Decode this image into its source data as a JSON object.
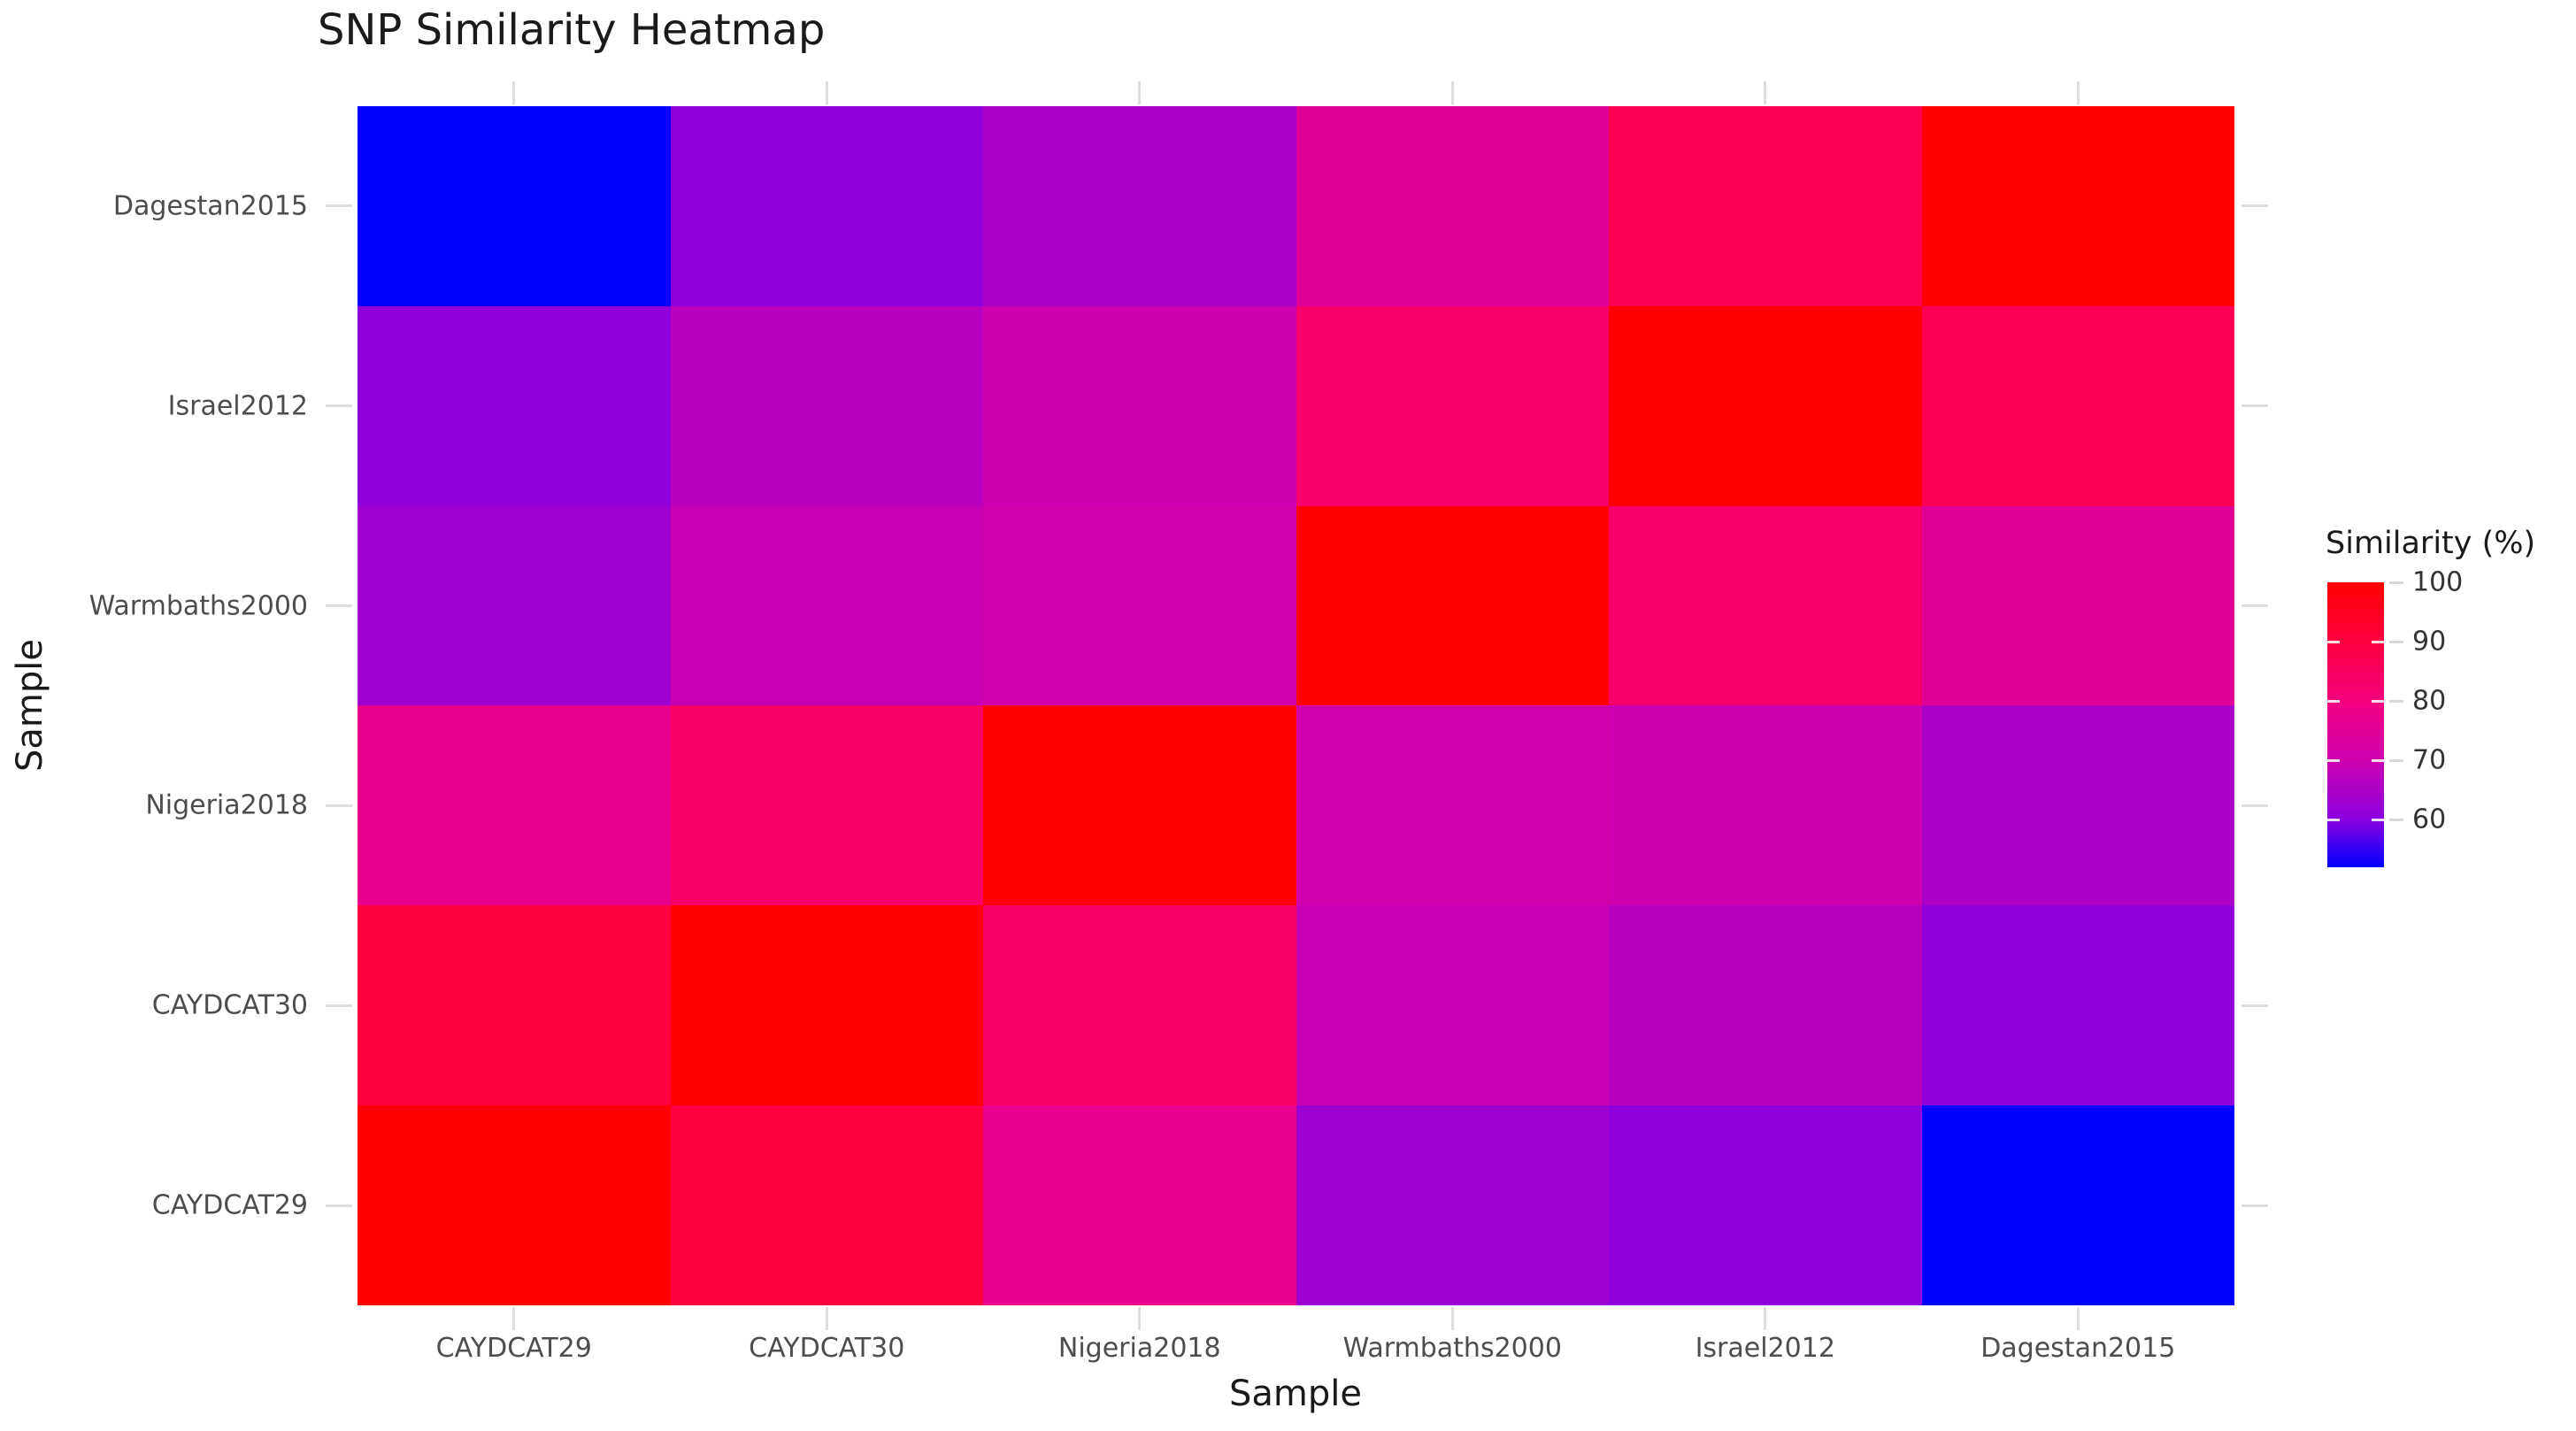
{
  "title": "SNP Similarity Heatmap",
  "x_axis": {
    "label": "Sample",
    "categories": [
      "CAYDCAT29",
      "CAYDCAT30",
      "Nigeria2018",
      "Warmbaths2000",
      "Israel2012",
      "Dagestan2015"
    ]
  },
  "y_axis": {
    "label": "Sample",
    "categories": [
      "Dagestan2015",
      "Israel2012",
      "Warmbaths2000",
      "Nigeria2018",
      "CAYDCAT30",
      "CAYDCAT29"
    ]
  },
  "legend": {
    "title": "Similarity (%)",
    "ticks": [
      100,
      90,
      80,
      70,
      60
    ],
    "position": "right"
  },
  "chart_data": {
    "type": "heatmap",
    "title": "SNP Similarity Heatmap",
    "xlabel": "Sample",
    "ylabel": "Sample",
    "x_categories": [
      "CAYDCAT29",
      "CAYDCAT30",
      "Nigeria2018",
      "Warmbaths2000",
      "Israel2012",
      "Dagestan2015"
    ],
    "y_categories_top_to_bottom": [
      "Dagestan2015",
      "Israel2012",
      "Warmbaths2000",
      "Nigeria2018",
      "CAYDCAT30",
      "CAYDCAT29"
    ],
    "values_rows_top_to_bottom": [
      [
        52,
        61,
        65,
        75,
        87,
        100
      ],
      [
        61,
        67,
        70,
        83,
        100,
        87
      ],
      [
        63,
        69,
        71,
        100,
        83,
        75
      ],
      [
        77,
        84,
        100,
        71,
        70,
        65
      ],
      [
        90,
        100,
        84,
        69,
        67,
        61
      ],
      [
        100,
        90,
        77,
        63,
        61,
        52
      ]
    ],
    "legend_title": "Similarity (%)",
    "legend_ticks": [
      100,
      90,
      80,
      70,
      60
    ],
    "colorscale": {
      "low_value": 52,
      "high_value": 100,
      "low_color": "#0000FF",
      "high_color": "#FF0000",
      "stops": [
        {
          "t": 0.0,
          "color": "#0000FF"
        },
        {
          "t": 0.1667,
          "color": "#8A00E0"
        },
        {
          "t": 0.375,
          "color": "#CC00B0"
        },
        {
          "t": 0.5833,
          "color": "#F4007E"
        },
        {
          "t": 0.7917,
          "color": "#FE0040"
        },
        {
          "t": 1.0,
          "color": "#FF0000"
        }
      ]
    },
    "grid": "light stubs at category centers outside panel",
    "background": "#FFFFFF"
  }
}
